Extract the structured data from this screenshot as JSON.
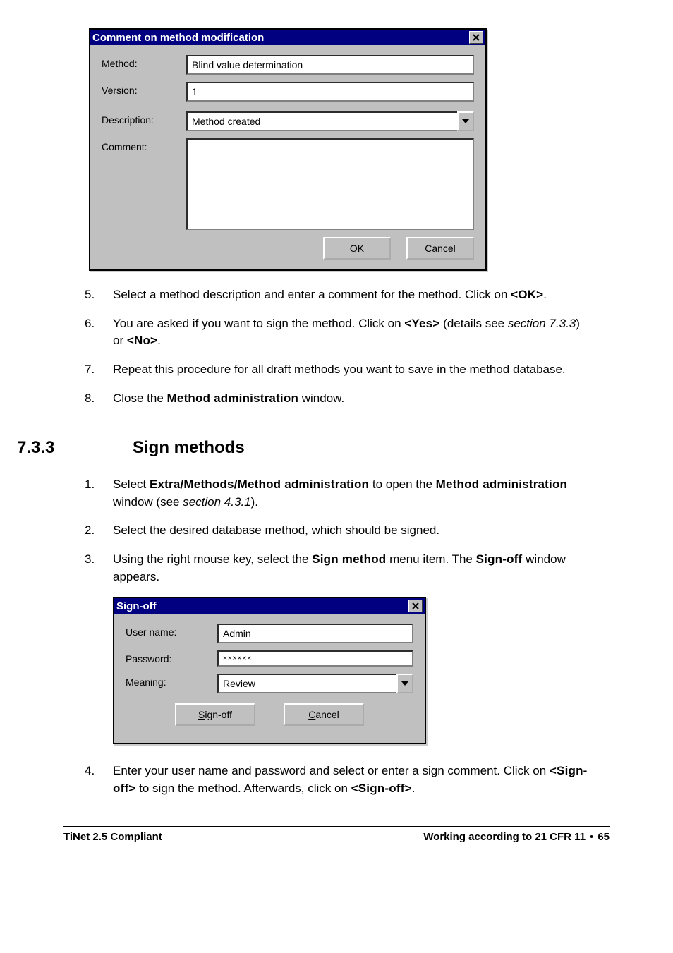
{
  "dialog1": {
    "title": "Comment on method modification",
    "labels": {
      "method": "Method:",
      "version": "Version:",
      "description": "Description:",
      "comment": "Comment:"
    },
    "values": {
      "method": "Blind value determination",
      "version": "1",
      "description": "Method created",
      "comment": ""
    },
    "buttons": {
      "ok": "OK",
      "ok_u": "O",
      "ok_rest": "K",
      "cancel": "Cancel",
      "cancel_u": "C",
      "cancel_rest": "ancel"
    },
    "colors": {
      "titlebar_bg": "#000080",
      "titlebar_fg": "#ffffff",
      "face": "#c0c0c0",
      "field_bg": "#ffffff",
      "text": "#000000"
    }
  },
  "steps_a": [
    {
      "n": "5.",
      "html": "Select a method description and enter a comment for the method. Click on <span class='boldn'>&lt;OK&gt;</span>."
    },
    {
      "n": "6.",
      "html": "You are asked if you want to sign the method. Click on <span class='boldn'>&lt;Yes&gt;</span> (details see <em class='sec'>section 7.3.3</em>) or <span class='boldn'>&lt;No&gt;</span>."
    },
    {
      "n": "7.",
      "html": "Repeat this procedure for all draft methods you want to save in the method database."
    },
    {
      "n": "8.",
      "html": "Close the <span class='boldn'>Method administration</span> window."
    }
  ],
  "heading": {
    "num": "7.3.3",
    "text": "Sign methods"
  },
  "steps_b": [
    {
      "n": "1.",
      "html": "Select <span class='boldn'>Extra/Methods/Method administration</span> to open the <span class='boldn'>Method administration</span> window (see <em class='sec'>section 4.3.1</em>)."
    },
    {
      "n": "2.",
      "html": "Select the desired database method, which should be signed."
    },
    {
      "n": "3.",
      "html": "Using the right mouse key, select the <span class='boldn'>Sign method</span> menu item. The <span class='boldn'>Sign-off</span> window appears."
    }
  ],
  "dialog2": {
    "title": "Sign-off",
    "labels": {
      "user": "User name:",
      "user_u": "U",
      "user_rest": "ser name:",
      "password": "Password:",
      "password_u": "P",
      "password_rest": "assword:",
      "meaning": "Meaning:"
    },
    "values": {
      "user": "Admin",
      "password": "××××××",
      "meaning": "Review"
    },
    "buttons": {
      "signoff_u": "S",
      "signoff_rest": "ign-off",
      "cancel_u": "C",
      "cancel_rest": "ancel"
    }
  },
  "steps_c": [
    {
      "n": "4.",
      "html": "Enter your user name and password and select or enter a sign comment. Click on <span class='boldn'>&lt;Sign-off&gt;</span> to sign the method. Afterwards, click on <span class='boldn'>&lt;Sign-off&gt;</span>."
    }
  ],
  "footer": {
    "left": "TiNet 2.5 Compliant",
    "right_a": "Working according to 21 CFR 11",
    "right_page": "65"
  }
}
